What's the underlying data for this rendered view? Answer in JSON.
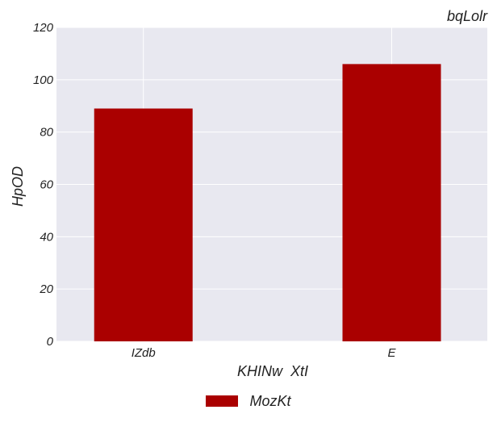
{
  "chart_data": {
    "type": "bar",
    "title": "bqLolr",
    "xlabel": "KHINw  XtI",
    "ylabel": "HpOD",
    "categories": [
      "IZdb",
      "E"
    ],
    "series": [
      {
        "name": "MozKt",
        "values": [
          89,
          106
        ],
        "color": "#aa0000"
      }
    ],
    "ylim": [
      0,
      120
    ],
    "yticks": [
      0,
      20,
      40,
      60,
      80,
      100,
      120
    ],
    "grid": true,
    "legend": "bottom-center",
    "background": "#e8e8f0"
  }
}
